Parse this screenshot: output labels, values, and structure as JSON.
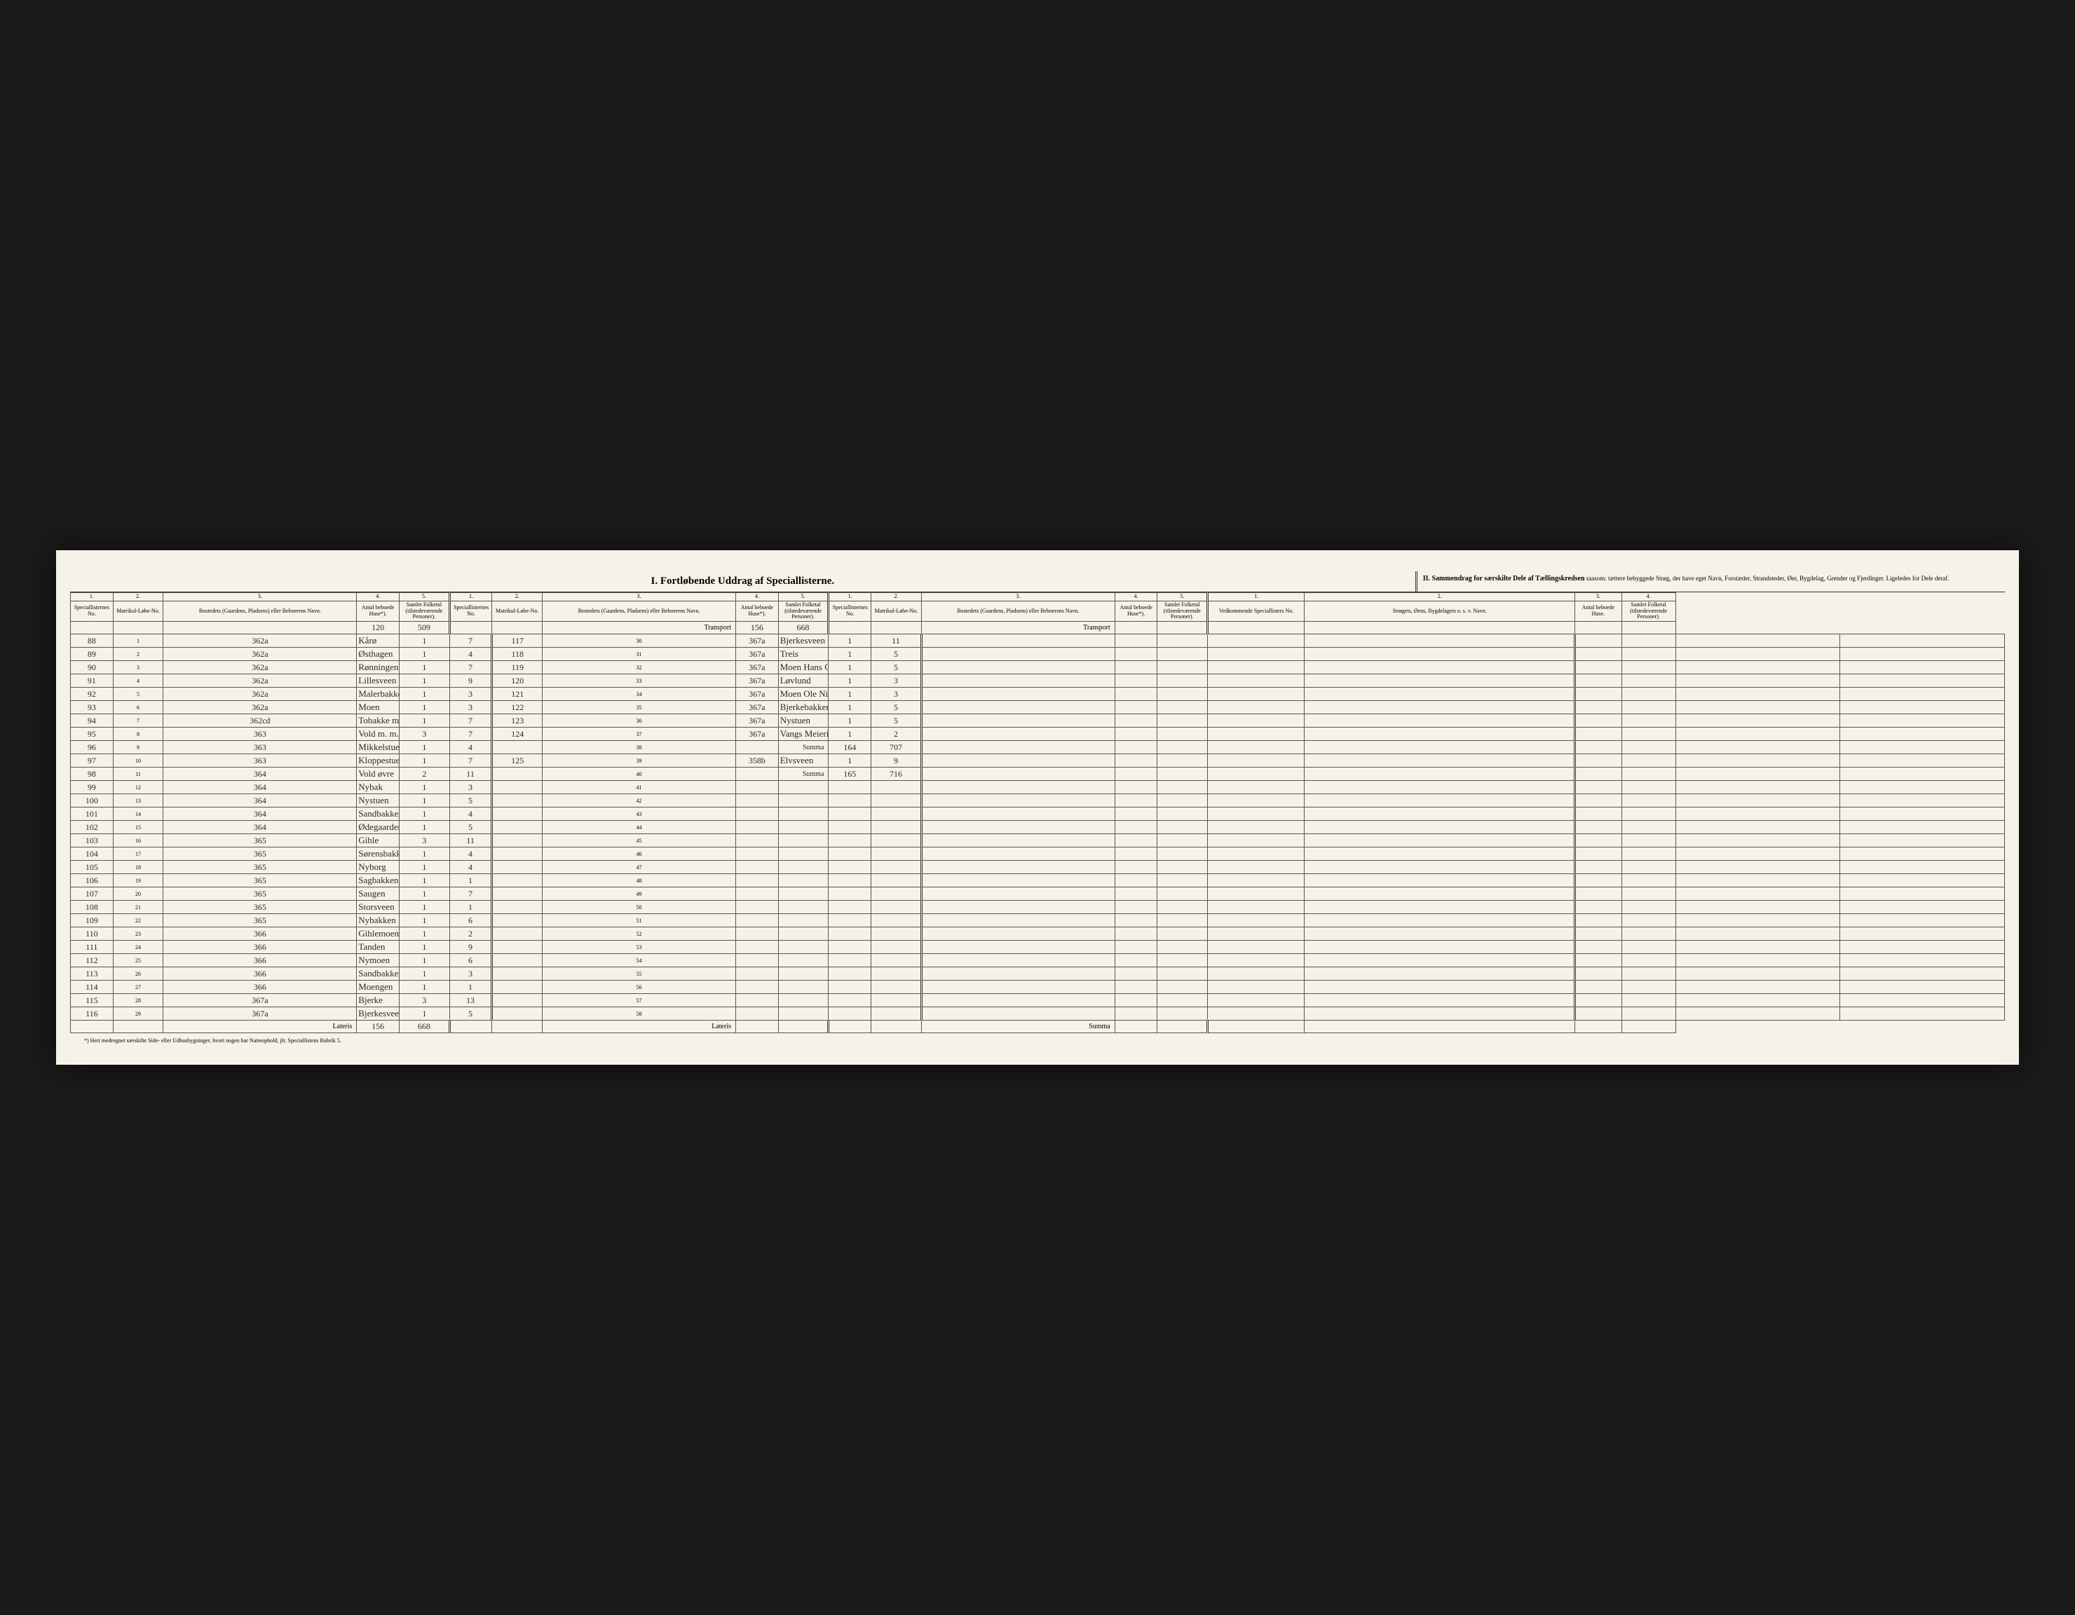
{
  "titles": {
    "section1": "I.  Fortløbende Uddrag af Speciallisterne.",
    "section2_bold": "II. Sammendrag for særskilte Dele af Tællingskredsen",
    "section2_rest": " saasom: tættere bebyggede Strøg, der have eget Navn, Forstæder, Strandsteder, Øer, Bygdelag, Grender og Fjerdinger. Ligeledes for Dele deraf."
  },
  "headers": {
    "c1": "Speciallisternes No.",
    "c2": "Matrikul-Løbe-No.",
    "c3": "Bostedets (Gaardens, Pladsens) eller Beboerens Navn.",
    "c4": "Antal beboede Huse*).",
    "c5": "Samlet Folketal (tilstedeværende Personer).",
    "s2c1": "Vedkommende Speciallisters No.",
    "s2c2": "Strøgets, Øens, Bygdelagets o. s. v. Navn.",
    "s2c3": "Antal beboede Huse.",
    "s2c4": "Samlet Folketal (tilstedeværende Personer)."
  },
  "labels": {
    "transport": "Transport",
    "lateris": "Lateris",
    "summa": "Summa",
    "footnote": "*) Heri medregnet særskilte Side- eller Udhusbygninger, hvori nogen har Natteophold, jfr. Speciallistens Rubrik 5."
  },
  "transport_left": {
    "huse": "120",
    "folk": "509"
  },
  "transport_mid": {
    "huse": "156",
    "folk": "668"
  },
  "lateris_left": {
    "huse": "156",
    "folk": "668"
  },
  "rowsA": [
    {
      "sp": "88",
      "ln": "1",
      "mat": "362a",
      "navn": "Kårø",
      "huse": "1",
      "folk": "7"
    },
    {
      "sp": "89",
      "ln": "2",
      "mat": "362a",
      "navn": "Østhagen",
      "huse": "1",
      "folk": "4"
    },
    {
      "sp": "90",
      "ln": "3",
      "mat": "362a",
      "navn": "Rønningen",
      "huse": "1",
      "folk": "7"
    },
    {
      "sp": "91",
      "ln": "4",
      "mat": "362a",
      "navn": "Lillesveen",
      "huse": "1",
      "folk": "9"
    },
    {
      "sp": "92",
      "ln": "5",
      "mat": "362a",
      "navn": "Malerbakken",
      "huse": "1",
      "folk": "3"
    },
    {
      "sp": "93",
      "ln": "6",
      "mat": "362a",
      "navn": "Moen",
      "huse": "1",
      "folk": "3"
    },
    {
      "sp": "94",
      "ln": "7",
      "mat": "362cd",
      "navn": "Tobakke m. Havningen",
      "huse": "1",
      "folk": "7"
    },
    {
      "sp": "95",
      "ln": "8",
      "mat": "363",
      "navn": "Vold m. m.",
      "huse": "3",
      "folk": "7"
    },
    {
      "sp": "96",
      "ln": "9",
      "mat": "363",
      "navn": "Mikkelstuen",
      "huse": "1",
      "folk": "4"
    },
    {
      "sp": "97",
      "ln": "10",
      "mat": "363",
      "navn": "Kloppestuen",
      "huse": "1",
      "folk": "7"
    },
    {
      "sp": "98",
      "ln": "11",
      "mat": "364",
      "navn": "Vold øvre",
      "huse": "2",
      "folk": "11"
    },
    {
      "sp": "99",
      "ln": "12",
      "mat": "364",
      "navn": "Nybak",
      "huse": "1",
      "folk": "3"
    },
    {
      "sp": "100",
      "ln": "13",
      "mat": "364",
      "navn": "Nystuen",
      "huse": "1",
      "folk": "5"
    },
    {
      "sp": "101",
      "ln": "14",
      "mat": "364",
      "navn": "Sandbakken",
      "huse": "1",
      "folk": "4"
    },
    {
      "sp": "102",
      "ln": "15",
      "mat": "364",
      "navn": "Ødegaarden",
      "huse": "1",
      "folk": "5"
    },
    {
      "sp": "103",
      "ln": "16",
      "mat": "365",
      "navn": "Gihle",
      "huse": "3",
      "folk": "11"
    },
    {
      "sp": "104",
      "ln": "17",
      "mat": "365",
      "navn": "Sørensbakken",
      "huse": "1",
      "folk": "4"
    },
    {
      "sp": "105",
      "ln": "18",
      "mat": "365",
      "navn": "Nyborg",
      "huse": "1",
      "folk": "4"
    },
    {
      "sp": "106",
      "ln": "19",
      "mat": "365",
      "navn": "Sagbakken",
      "huse": "1",
      "folk": "1"
    },
    {
      "sp": "107",
      "ln": "20",
      "mat": "365",
      "navn": "Saugen",
      "huse": "1",
      "folk": "7"
    },
    {
      "sp": "108",
      "ln": "21",
      "mat": "365",
      "navn": "Storsveen",
      "huse": "1",
      "folk": "1"
    },
    {
      "sp": "109",
      "ln": "22",
      "mat": "365",
      "navn": "Nybakken",
      "huse": "1",
      "folk": "6"
    },
    {
      "sp": "110",
      "ln": "23",
      "mat": "366",
      "navn": "Gihlemoen",
      "huse": "1",
      "folk": "2"
    },
    {
      "sp": "111",
      "ln": "24",
      "mat": "366",
      "navn": "Tanden",
      "huse": "1",
      "folk": "9"
    },
    {
      "sp": "112",
      "ln": "25",
      "mat": "366",
      "navn": "Nymoen",
      "huse": "1",
      "folk": "6"
    },
    {
      "sp": "113",
      "ln": "26",
      "mat": "366",
      "navn": "Sandbakken",
      "huse": "1",
      "folk": "3"
    },
    {
      "sp": "114",
      "ln": "27",
      "mat": "366",
      "navn": "Moengen",
      "huse": "1",
      "folk": "1"
    },
    {
      "sp": "115",
      "ln": "28",
      "mat": "367a",
      "navn": "Bjerke",
      "huse": "3",
      "folk": "13"
    },
    {
      "sp": "116",
      "ln": "29",
      "mat": "367a",
      "navn": "Bjerkesveen Anders Olsen",
      "huse": "1",
      "folk": "5"
    }
  ],
  "rowsB": [
    {
      "sp": "117",
      "ln": "30",
      "mat": "367a",
      "navn": "Bjerkesveen Christen Johns.",
      "huse": "1",
      "folk": "11"
    },
    {
      "sp": "118",
      "ln": "31",
      "mat": "367a",
      "navn": "Treis",
      "huse": "1",
      "folk": "5"
    },
    {
      "sp": "119",
      "ln": "32",
      "mat": "367a",
      "navn": "Moen Hans Olsen",
      "huse": "1",
      "folk": "5"
    },
    {
      "sp": "120",
      "ln": "33",
      "mat": "367a",
      "navn": "Løvlund",
      "huse": "1",
      "folk": "3"
    },
    {
      "sp": "121",
      "ln": "34",
      "mat": "367a",
      "navn": "Moen Ole Nilsen",
      "huse": "1",
      "folk": "3"
    },
    {
      "sp": "122",
      "ln": "35",
      "mat": "367a",
      "navn": "Bjerkebakken",
      "huse": "1",
      "folk": "5"
    },
    {
      "sp": "123",
      "ln": "36",
      "mat": "367a",
      "navn": "Nystuen",
      "huse": "1",
      "folk": "5"
    },
    {
      "sp": "124",
      "ln": "37",
      "mat": "367a",
      "navn": "Vangs Meieri",
      "huse": "1",
      "folk": "2"
    }
  ],
  "summaB": {
    "label": "Summa",
    "huse": "164",
    "folk": "707"
  },
  "rowsB2": [
    {
      "sp": "125",
      "ln": "39",
      "mat": "358b",
      "navn": "Elvsveen",
      "huse": "1",
      "folk": "9"
    }
  ],
  "summaB2": {
    "label": "Summa",
    "huse": "165",
    "folk": "716"
  },
  "blank_lines_B": [
    41,
    42,
    43,
    44,
    45,
    46,
    47,
    48,
    49,
    50,
    51,
    52,
    53,
    54,
    55,
    56,
    57,
    58
  ]
}
